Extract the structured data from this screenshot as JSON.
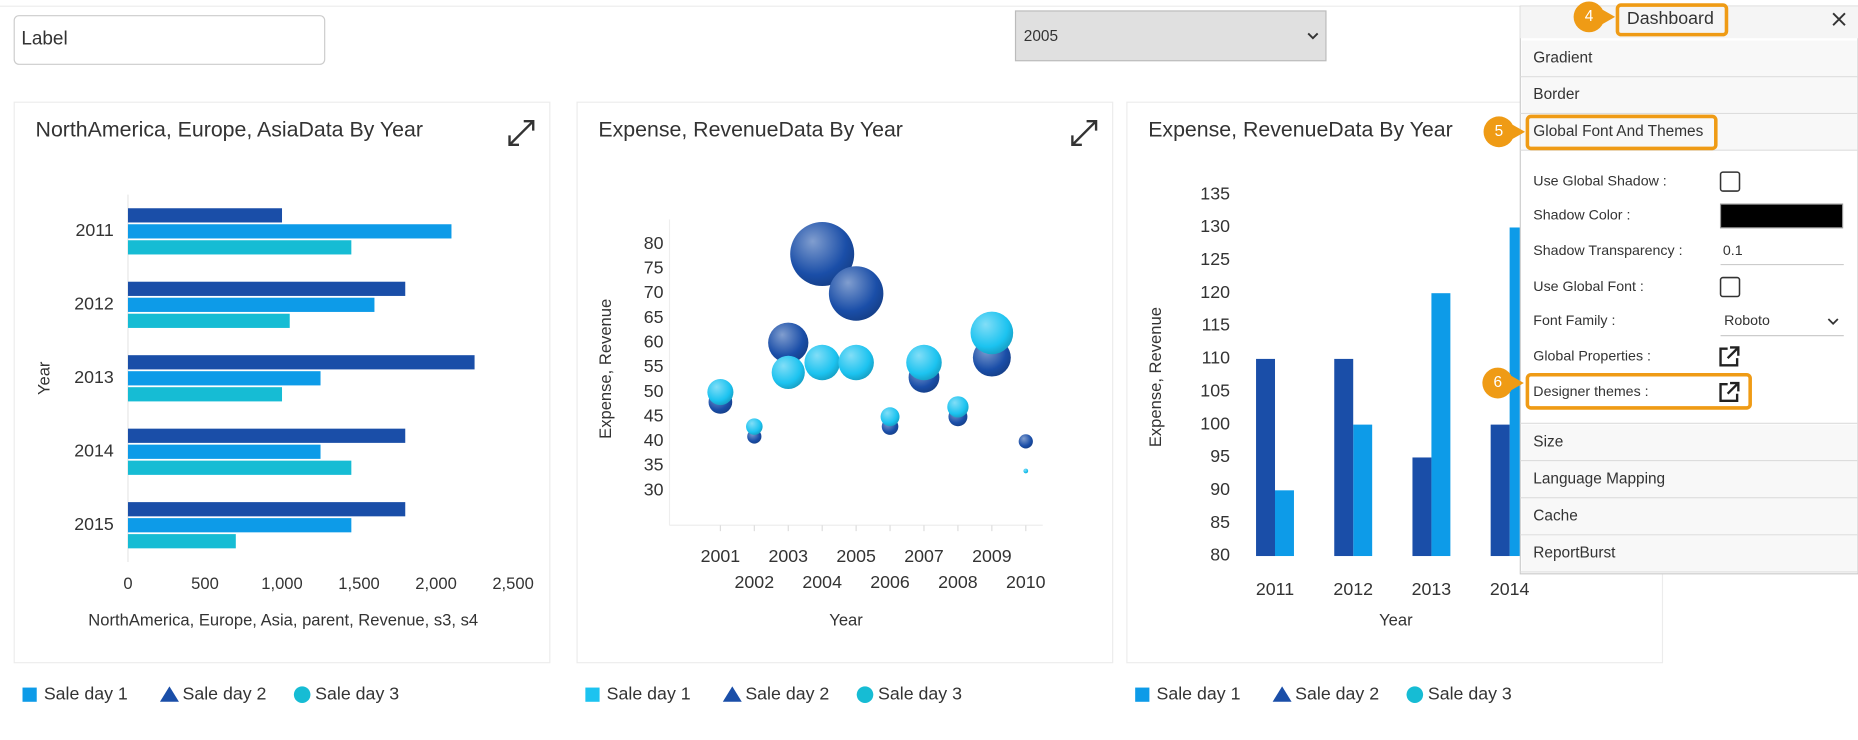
{
  "label_input": "Label",
  "year_select": "2005",
  "chart_data": [
    {
      "type": "hbar",
      "title": "NorthAmerica, Europe, AsiaData By Year",
      "x_label": "NorthAmerica, Europe, Asia, parent, Revenue, s3, s4",
      "y_label": "Year",
      "categories": [
        "2011",
        "2012",
        "2013",
        "2014",
        "2015"
      ],
      "series": [
        {
          "name": "Sale day 1",
          "color": "#0d9be8",
          "marker": "square",
          "values": [
            2100,
            1600,
            1250,
            1250,
            1450
          ]
        },
        {
          "name": "Sale day 2",
          "color": "#1a4ea8",
          "marker": "triangle",
          "values": [
            1000,
            1800,
            2250,
            1800,
            1800
          ]
        },
        {
          "name": "Sale day 3",
          "color": "#16bcd4",
          "marker": "circle",
          "values": [
            1450,
            1050,
            1000,
            1450,
            700
          ]
        }
      ],
      "xlim": [
        0,
        2500
      ],
      "xticks": [
        0,
        500,
        {
          "value": 1000,
          "label": "1,000"
        },
        {
          "value": 1500,
          "label": "1,500"
        },
        {
          "value": 2000,
          "label": "2,000"
        },
        {
          "value": 2500,
          "label": "2,500"
        }
      ],
      "grid": false
    },
    {
      "type": "bubble",
      "title": "Expense, RevenueData By Year",
      "x_label": "Year",
      "y_label": "Expense, Revenue",
      "x": [
        2001,
        2002,
        2003,
        2004,
        2005,
        2006,
        2007,
        2008,
        2009,
        2010
      ],
      "series": [
        {
          "name": "Sale day 1",
          "color": "#1cc3f0",
          "marker": "square",
          "values": [
            50,
            43,
            54,
            56,
            56,
            45,
            56,
            47,
            62,
            34
          ],
          "sizes": [
            11,
            7,
            14,
            15,
            15,
            8,
            15,
            9,
            18,
            2
          ]
        },
        {
          "name": "Sale day 2",
          "color": "#1a4ea8",
          "marker": "triangle",
          "values": [
            48,
            41,
            60,
            78,
            70,
            43,
            53,
            45,
            57,
            40
          ],
          "sizes": [
            10,
            6,
            17,
            27,
            23,
            7,
            13,
            8,
            16,
            6
          ]
        },
        {
          "name": "Sale day 3",
          "color": "#16bcd4",
          "marker": "circle",
          "values": [
            null,
            null,
            null,
            null,
            null,
            null,
            null,
            null,
            null,
            null
          ],
          "sizes": [
            null,
            null,
            null,
            null,
            null,
            null,
            null,
            null,
            null,
            null
          ]
        }
      ],
      "xlim": [
        1999.5,
        2010.5
      ],
      "xticks": [
        2001,
        2002,
        2003,
        2004,
        2005,
        2006,
        2007,
        2008,
        2009,
        2010
      ],
      "ylim": [
        23,
        85
      ],
      "yticks": [
        30,
        35,
        40,
        45,
        50,
        55,
        60,
        65,
        70,
        75,
        80
      ],
      "grid": false
    },
    {
      "type": "bar",
      "title": "Expense, RevenueData By Year",
      "x_label": "Year",
      "y_label": "Expense, Revenue",
      "categories": [
        "2011",
        "2012",
        "2013",
        "2014"
      ],
      "series": [
        {
          "name": "Sale day 1",
          "color": "#0d9be8",
          "marker": "square",
          "values": [
            90,
            100,
            120,
            130
          ]
        },
        {
          "name": "Sale day 2",
          "color": "#1a4ea8",
          "marker": "triangle",
          "values": [
            110,
            110,
            95,
            100
          ]
        },
        {
          "name": "Sale day 3",
          "color": "#16bcd4",
          "marker": "circle",
          "values": [
            null,
            null,
            null,
            null
          ]
        }
      ],
      "ylim": [
        80,
        135
      ],
      "yticks": [
        80,
        85,
        90,
        95,
        100,
        105,
        110,
        115,
        120,
        125,
        130,
        135
      ],
      "grid": false
    }
  ],
  "panel": {
    "title": "Dashboard",
    "title_badge": 4,
    "sections": [
      "Gradient",
      "Border",
      "Global Font And Themes"
    ],
    "open_section_badge": 5,
    "fields": [
      {
        "label": "Use Global Shadow :",
        "control": "checkbox"
      },
      {
        "label": "Shadow Color :",
        "control": "color",
        "value": "#000000"
      },
      {
        "label": "Shadow Transparency :",
        "control": "text",
        "value": 0.1
      },
      {
        "label": "Use Global Font :",
        "control": "checkbox"
      },
      {
        "label": "Font Family :",
        "control": "select",
        "value": "Roboto"
      },
      {
        "label": "Global Properties :",
        "control": "link"
      },
      {
        "label": "Designer themes :",
        "control": "link",
        "badge": 6
      }
    ],
    "more_sections": [
      "Size",
      "Language Mapping",
      "Cache",
      "ReportBurst"
    ]
  }
}
